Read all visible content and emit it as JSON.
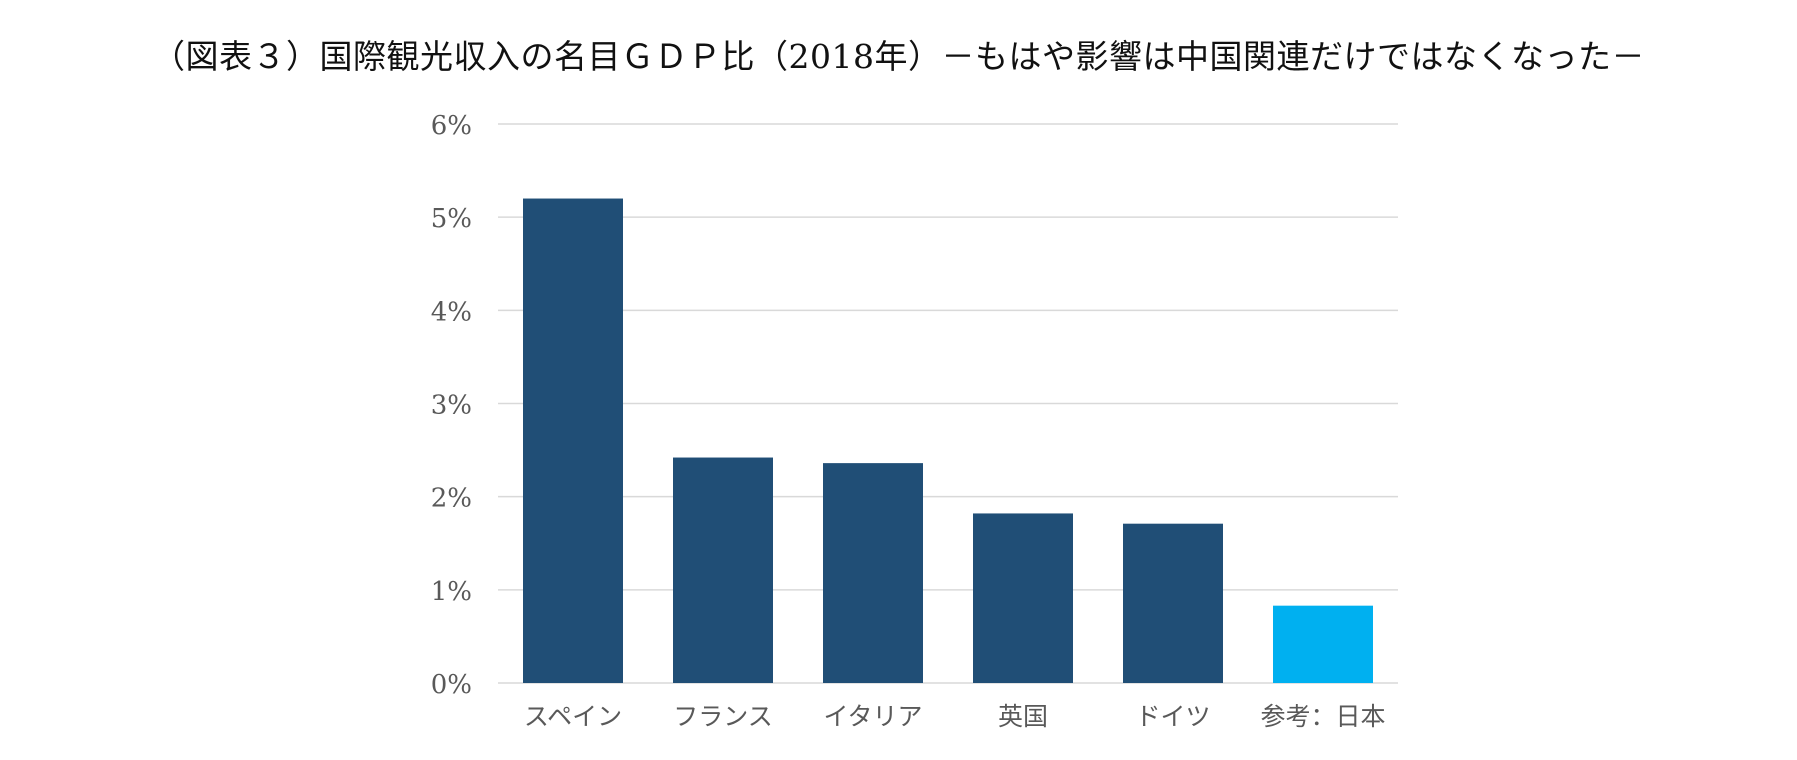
{
  "chart_data": {
    "type": "bar",
    "title": "（図表３）国際観光収入の名目ＧＤＰ比（2018年）－もはや影響は中国関連だけではなくなった－",
    "categories": [
      "スペイン",
      "フランス",
      "イタリア",
      "英国",
      "ドイツ",
      "参考：日本"
    ],
    "values": [
      5.2,
      2.42,
      2.36,
      1.82,
      1.71,
      0.83
    ],
    "value_unit": "%",
    "ylim": [
      0,
      6
    ],
    "yticks": [
      0,
      1,
      2,
      3,
      4,
      5,
      6
    ],
    "ytick_labels": [
      "0%",
      "1%",
      "2%",
      "3%",
      "4%",
      "5%",
      "6%"
    ],
    "xlabel": "",
    "ylabel": "",
    "grid": true,
    "legend": "none",
    "colors": {
      "bar_default": "#204e76",
      "bar_highlight": "#00b0f0",
      "grid": "#d9d9d9",
      "tick_text": "#595959"
    },
    "highlight_index": 5
  }
}
